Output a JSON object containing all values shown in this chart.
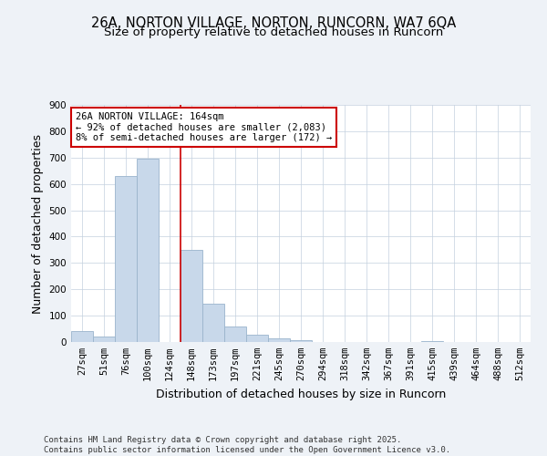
{
  "title": "26A, NORTON VILLAGE, NORTON, RUNCORN, WA7 6QA",
  "subtitle": "Size of property relative to detached houses in Runcorn",
  "xlabel": "Distribution of detached houses by size in Runcorn",
  "ylabel": "Number of detached properties",
  "categories": [
    "27sqm",
    "51sqm",
    "76sqm",
    "100sqm",
    "124sqm",
    "148sqm",
    "173sqm",
    "197sqm",
    "221sqm",
    "245sqm",
    "270sqm",
    "294sqm",
    "318sqm",
    "342sqm",
    "367sqm",
    "391sqm",
    "415sqm",
    "439sqm",
    "464sqm",
    "488sqm",
    "512sqm"
  ],
  "values": [
    40,
    20,
    630,
    695,
    0,
    350,
    145,
    60,
    28,
    14,
    8,
    0,
    0,
    0,
    0,
    0,
    3,
    0,
    0,
    0,
    0
  ],
  "bar_color": "#c8d8ea",
  "bar_edgecolor": "#9ab4cc",
  "vline_color": "#cc0000",
  "vline_x_index": 4.5,
  "annotation_text": "26A NORTON VILLAGE: 164sqm\n← 92% of detached houses are smaller (2,083)\n8% of semi-detached houses are larger (172) →",
  "annotation_box_color": "#ffffff",
  "annotation_box_edgecolor": "#cc0000",
  "ylim": [
    0,
    900
  ],
  "yticks": [
    0,
    100,
    200,
    300,
    400,
    500,
    600,
    700,
    800,
    900
  ],
  "footer": "Contains HM Land Registry data © Crown copyright and database right 2025.\nContains public sector information licensed under the Open Government Licence v3.0.",
  "bg_color": "#eef2f7",
  "plot_bg_color": "#ffffff",
  "grid_color": "#c4d0de",
  "title_fontsize": 10.5,
  "subtitle_fontsize": 9.5,
  "axis_label_fontsize": 9,
  "tick_fontsize": 7.5,
  "annotation_fontsize": 7.5,
  "footer_fontsize": 6.5
}
